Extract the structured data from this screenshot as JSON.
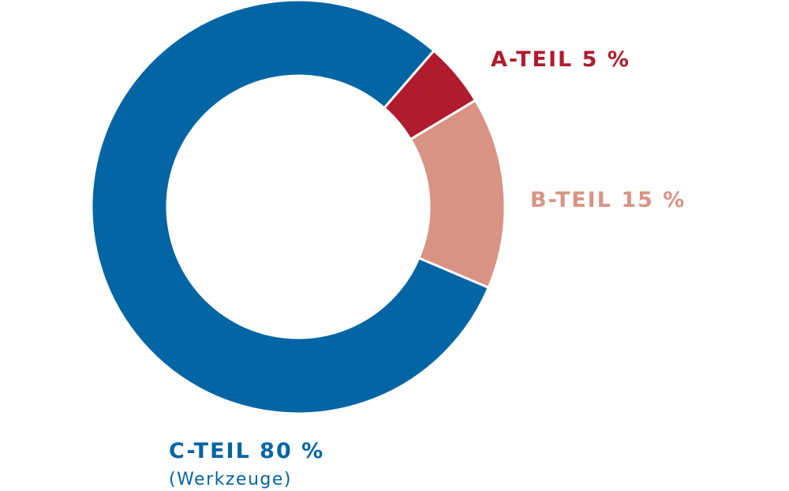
{
  "chart_data": {
    "type": "pie",
    "variant": "donut",
    "categories": [
      "A-TEIL",
      "B-TEIL",
      "C-TEIL"
    ],
    "values": [
      5,
      15,
      80
    ],
    "unit": "%",
    "colors": {
      "A-TEIL": "#B01B2E",
      "B-TEIL": "#D99384",
      "C-TEIL": "#0365A4"
    },
    "labels": {
      "a": "A-TEIL 5 %",
      "b": "B-TEIL 15 %",
      "c": "C-TEIL 80 %",
      "c_sub": "(Werkzeuge)"
    }
  }
}
